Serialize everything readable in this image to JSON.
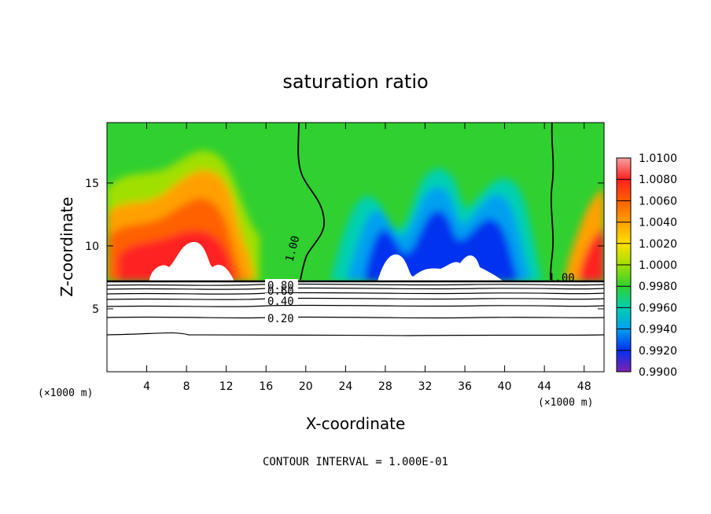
{
  "chart_data": {
    "type": "heatmap",
    "title": "saturation ratio",
    "xlabel": "X-coordinate",
    "ylabel": "Z-coordinate",
    "x_unit_label": "(×1000 m)",
    "xlim": [
      0,
      50
    ],
    "ylim": [
      0,
      19.8
    ],
    "x_ticks": [
      4,
      8,
      12,
      16,
      20,
      24,
      28,
      32,
      36,
      40,
      44,
      48
    ],
    "x_tick_labels": [
      "4",
      "8",
      "12",
      "16",
      "20",
      "24",
      "28",
      "32",
      "36",
      "40",
      "44",
      "48"
    ],
    "y_ticks": [
      5,
      10,
      15
    ],
    "y_tick_labels": [
      "5",
      "10",
      "15"
    ],
    "colorbar": {
      "min": 0.99,
      "max": 1.01,
      "labels": [
        "1.0100",
        "1.0080",
        "1.0060",
        "1.0040",
        "1.0020",
        "1.0000",
        "0.9980",
        "0.9960",
        "0.9940",
        "0.9920",
        "0.9900"
      ],
      "colors": [
        "#f4a0a0",
        "#ff2020",
        "#ff6000",
        "#ffa000",
        "#ffe000",
        "#a0e000",
        "#30d030",
        "#00d0b0",
        "#00a0f0",
        "#0030f0",
        "#8020b0"
      ]
    },
    "contour_labels": [
      {
        "text": "1.00",
        "x": 18.8,
        "z": 9.6
      },
      {
        "text": "1.00",
        "x": 46.2,
        "z": 7.8
      },
      {
        "text": "0.80",
        "x": 17.6,
        "z": 7.4
      },
      {
        "text": "0.60",
        "x": 17.6,
        "z": 6.8
      },
      {
        "text": "0.40",
        "x": 17.6,
        "z": 6.0
      },
      {
        "text": "0.20",
        "x": 17.6,
        "z": 4.4
      }
    ],
    "contour_interval_text": "CONTOUR INTERVAL = 1.000E-01"
  }
}
